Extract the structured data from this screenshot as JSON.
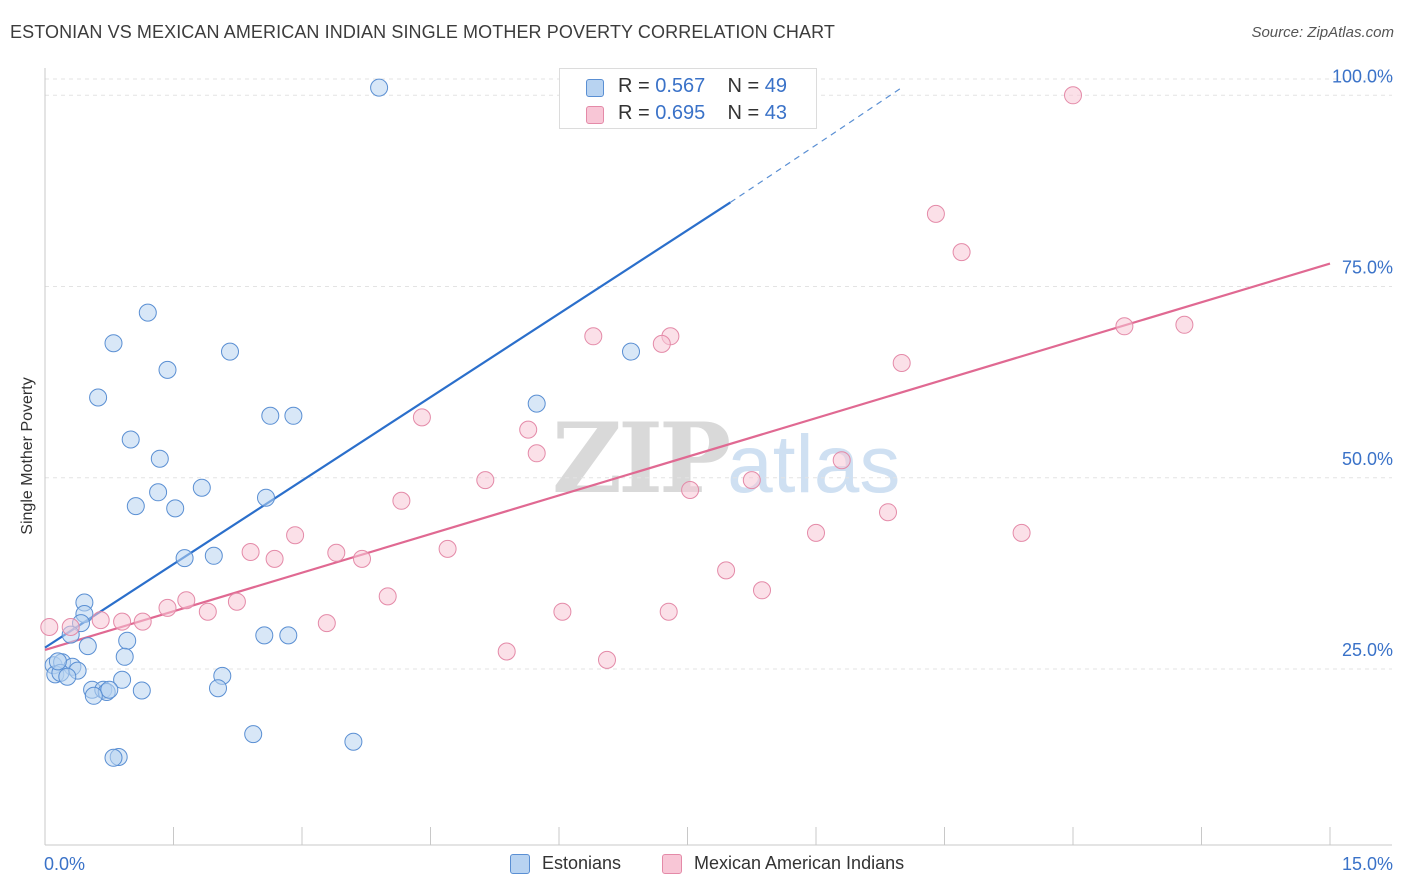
{
  "title": "ESTONIAN VS MEXICAN AMERICAN INDIAN SINGLE MOTHER POVERTY CORRELATION CHART",
  "source": "Source: ZipAtlas.com",
  "watermark": {
    "zip": "ZIP",
    "atlas": "atlas"
  },
  "legend_top": {
    "rows": [
      {
        "r_label": "R = ",
        "r_value": "0.567",
        "n_label": "N = ",
        "n_value": "49"
      },
      {
        "r_label": "R = ",
        "r_value": "0.695",
        "n_label": "N = ",
        "n_value": "43"
      }
    ]
  },
  "colors": {
    "blue_fill": "#b8d3f1",
    "blue_stroke": "#5a8fd3",
    "blue_line": "#2b6fcb",
    "pink_fill": "#f8c6d6",
    "pink_stroke": "#e48aa8",
    "pink_line": "#e06992",
    "axis_label": "#3a72c8",
    "grid": "#e3e3e3"
  },
  "chart_data": {
    "type": "scatter",
    "title": "ESTONIAN VS MEXICAN AMERICAN INDIAN SINGLE MOTHER POVERTY CORRELATION CHART",
    "xlabel": "",
    "ylabel": "Single Mother Poverty",
    "xlim": [
      0,
      15
    ],
    "ylim": [
      2,
      103
    ],
    "x_tick_labels": [
      {
        "value": 0,
        "label": "0.0%"
      },
      {
        "value": 15,
        "label": "15.0%"
      }
    ],
    "y_tick_labels": [
      {
        "value": 25,
        "label": "25.0%"
      },
      {
        "value": 50,
        "label": "50.0%"
      },
      {
        "value": 75,
        "label": "75.0%"
      },
      {
        "value": 100,
        "label": "100.0%"
      }
    ],
    "grid": true,
    "legend_position": "bottom-center",
    "series": [
      {
        "name": "Estonians",
        "color": "#5a8fd3",
        "r": 0.567,
        "n": 49,
        "trend": {
          "x": [
            0.0,
            8.0
          ],
          "y": [
            27.8,
            86.0
          ],
          "dashed_to": [
            10.0,
            101.0
          ]
        },
        "points": [
          [
            3.9,
            101.0
          ],
          [
            1.2,
            71.6
          ],
          [
            0.8,
            67.6
          ],
          [
            2.16,
            66.5
          ],
          [
            1.43,
            64.1
          ],
          [
            0.62,
            60.5
          ],
          [
            2.63,
            58.1
          ],
          [
            2.9,
            58.1
          ],
          [
            1.0,
            55.0
          ],
          [
            1.34,
            52.5
          ],
          [
            1.83,
            48.7
          ],
          [
            1.32,
            48.1
          ],
          [
            2.58,
            47.4
          ],
          [
            1.06,
            46.3
          ],
          [
            1.52,
            46.0
          ],
          [
            1.63,
            39.5
          ],
          [
            1.97,
            39.8
          ],
          [
            0.46,
            33.7
          ],
          [
            0.46,
            32.2
          ],
          [
            0.42,
            31.0
          ],
          [
            0.3,
            29.5
          ],
          [
            0.96,
            28.7
          ],
          [
            2.56,
            29.4
          ],
          [
            2.84,
            29.4
          ],
          [
            0.93,
            26.6
          ],
          [
            0.1,
            25.5
          ],
          [
            0.2,
            25.9
          ],
          [
            0.32,
            25.3
          ],
          [
            0.38,
            24.8
          ],
          [
            0.12,
            24.3
          ],
          [
            0.18,
            24.5
          ],
          [
            0.26,
            24.0
          ],
          [
            0.9,
            23.6
          ],
          [
            2.07,
            24.1
          ],
          [
            0.55,
            22.3
          ],
          [
            0.68,
            22.3
          ],
          [
            0.72,
            22.0
          ],
          [
            0.75,
            22.3
          ],
          [
            0.57,
            21.5
          ],
          [
            1.13,
            22.2
          ],
          [
            2.02,
            22.5
          ],
          [
            6.84,
            66.5
          ],
          [
            5.74,
            59.7
          ],
          [
            2.43,
            16.5
          ],
          [
            3.6,
            15.5
          ],
          [
            0.86,
            13.5
          ],
          [
            0.8,
            13.4
          ],
          [
            0.5,
            28.0
          ],
          [
            0.15,
            26.0
          ]
        ]
      },
      {
        "name": "Mexican American Indians",
        "color": "#e48aa8",
        "r": 0.695,
        "n": 43,
        "trend": {
          "x": [
            0.0,
            15.0
          ],
          "y": [
            27.5,
            78.0
          ]
        },
        "points": [
          [
            12.0,
            100.0
          ],
          [
            10.4,
            84.5
          ],
          [
            10.7,
            79.5
          ],
          [
            13.3,
            70.0
          ],
          [
            12.6,
            69.8
          ],
          [
            6.4,
            68.5
          ],
          [
            7.3,
            68.5
          ],
          [
            7.2,
            67.5
          ],
          [
            10.0,
            65.0
          ],
          [
            4.4,
            57.9
          ],
          [
            5.64,
            56.3
          ],
          [
            5.74,
            53.2
          ],
          [
            9.3,
            52.3
          ],
          [
            5.14,
            49.7
          ],
          [
            8.25,
            49.7
          ],
          [
            7.53,
            48.4
          ],
          [
            4.16,
            47.0
          ],
          [
            9.84,
            45.5
          ],
          [
            9.0,
            42.8
          ],
          [
            11.4,
            42.8
          ],
          [
            2.92,
            42.5
          ],
          [
            4.7,
            40.7
          ],
          [
            2.4,
            40.3
          ],
          [
            3.4,
            40.2
          ],
          [
            2.68,
            39.4
          ],
          [
            3.7,
            39.4
          ],
          [
            7.95,
            37.9
          ],
          [
            1.65,
            34.0
          ],
          [
            2.24,
            33.8
          ],
          [
            8.37,
            35.3
          ],
          [
            4.0,
            34.5
          ],
          [
            1.43,
            33.0
          ],
          [
            1.9,
            32.5
          ],
          [
            6.04,
            32.5
          ],
          [
            7.28,
            32.5
          ],
          [
            0.9,
            31.2
          ],
          [
            1.14,
            31.2
          ],
          [
            0.65,
            31.4
          ],
          [
            3.29,
            31.0
          ],
          [
            0.3,
            30.5
          ],
          [
            5.39,
            27.3
          ],
          [
            6.56,
            26.2
          ],
          [
            0.05,
            30.5
          ]
        ]
      }
    ]
  },
  "legend_bottom": {
    "items": [
      {
        "label": "Estonians"
      },
      {
        "label": "Mexican American Indians"
      }
    ]
  }
}
